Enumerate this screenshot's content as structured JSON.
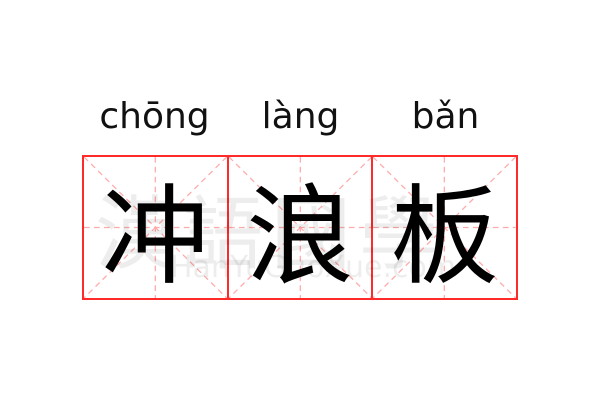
{
  "words": [
    {
      "pinyin": "chōng",
      "hanzi": "冲"
    },
    {
      "pinyin": "làng",
      "hanzi": "浪"
    },
    {
      "pinyin": "bǎn",
      "hanzi": "板"
    }
  ],
  "watermark": {
    "chinese": "漢語國學",
    "latin": "HanYuGuoXue.com"
  },
  "colors": {
    "grid_border": "#ff2a2a",
    "guide_lines": "#ffaaaa",
    "text": "#000000"
  }
}
